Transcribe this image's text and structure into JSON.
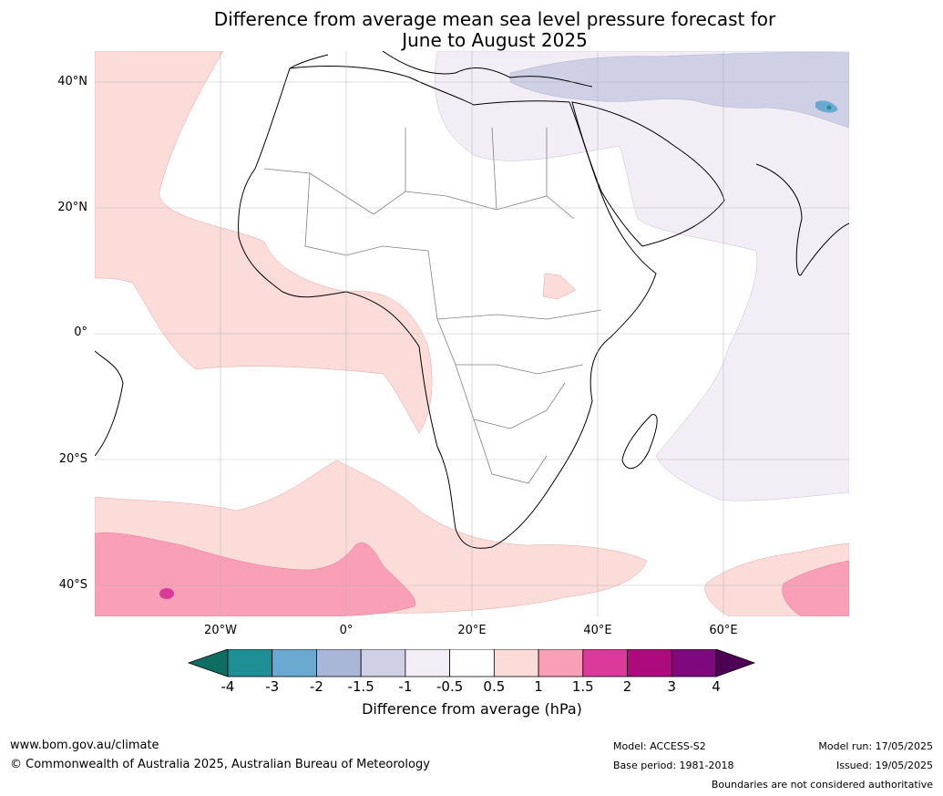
{
  "title_line1": "Difference from average mean sea level pressure forecast for",
  "title_line2": "June to August 2025",
  "lat_labels": [
    "40°N",
    "20°N",
    "0°",
    "20°S",
    "40°S"
  ],
  "lon_labels": [
    "20°W",
    "0°",
    "20°E",
    "40°E",
    "60°E"
  ],
  "colorbar": {
    "ticks": [
      "-4",
      "-3",
      "-2",
      "-1.5",
      "-1",
      "-0.5",
      "0.5",
      "1",
      "1.5",
      "2",
      "3",
      "4"
    ],
    "colors": [
      "#0f6e64",
      "#1f8f96",
      "#6aaad0",
      "#a9b6d8",
      "#cfd0e6",
      "#f3edf5",
      "#ffffff",
      "#fcdcd9",
      "#f9a0b8",
      "#dc3a9a",
      "#ad0a7d",
      "#7e087d",
      "#4d0055"
    ],
    "label": "Difference from average (hPa)"
  },
  "footer": {
    "website": "www.bom.gov.au/climate",
    "copyright": "© Commonwealth of Australia 2025, Australian Bureau of Meteorology",
    "model": "Model: ACCESS-S2",
    "base_period": "Base period: 1981-2018",
    "model_run": "Model run: 17/05/2025",
    "issued": "Issued: 19/05/2025",
    "disclaimer": "Boundaries are not considered authoritative"
  }
}
